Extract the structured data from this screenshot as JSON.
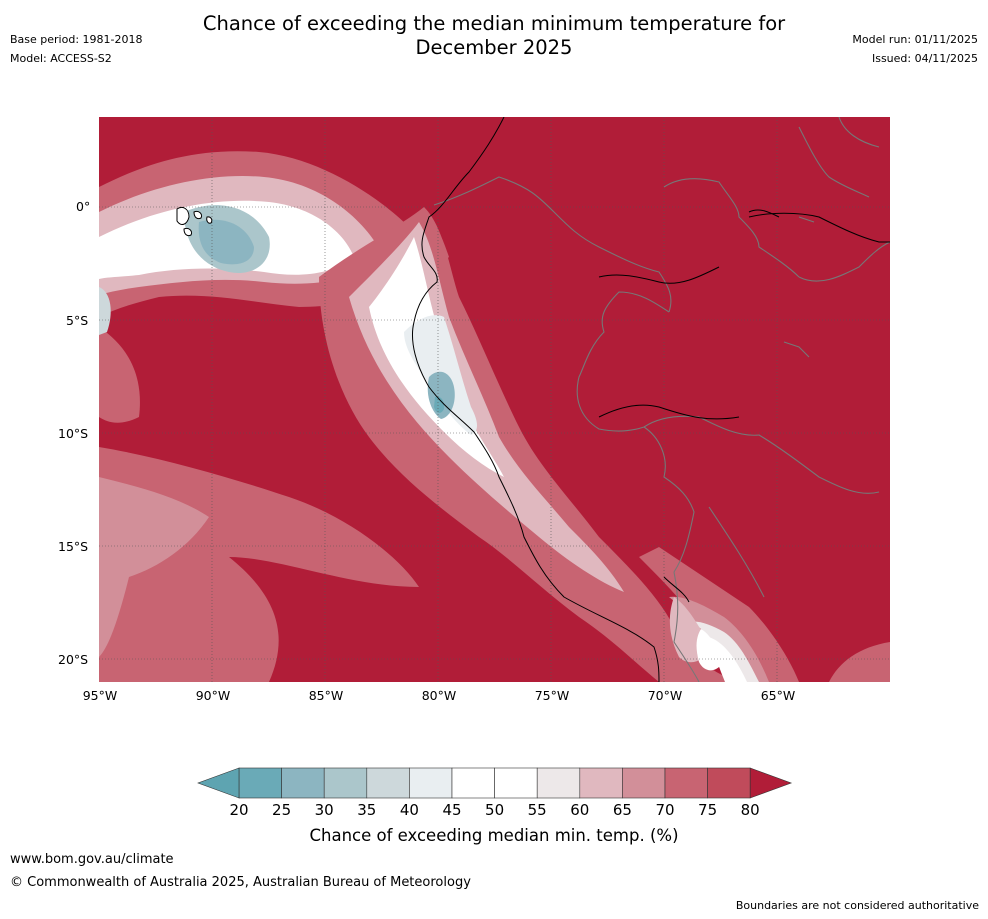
{
  "title": {
    "line1": "Chance of exceeding the median minimum temperature for",
    "line2": "December 2025"
  },
  "meta_left": {
    "base_period": "Base period: 1981-2018",
    "model": "Model: ACCESS-S2"
  },
  "meta_right": {
    "model_run": "Model run: 01/11/2025",
    "issued": "Issued: 04/11/2025"
  },
  "map": {
    "lat_labels": [
      "0°",
      "5°S",
      "10°S",
      "15°S",
      "20°S"
    ],
    "lon_labels": [
      "95°W",
      "90°W",
      "85°W",
      "80°W",
      "75°W",
      "70°W",
      "65°W"
    ],
    "lat_values": [
      0,
      -5,
      -10,
      -15,
      -20
    ],
    "lon_values": [
      -95,
      -90,
      -85,
      -80,
      -75,
      -70,
      -65
    ],
    "extent": {
      "lon_min": -95,
      "lon_max": -60,
      "lat_min": -21,
      "lat_max": 4
    }
  },
  "colorbar": {
    "ticks": [
      "20",
      "25",
      "30",
      "35",
      "40",
      "45",
      "50",
      "55",
      "60",
      "65",
      "70",
      "75",
      "80"
    ],
    "colors": [
      "#6aaab7",
      "#8cb5c1",
      "#abc6cb",
      "#cdd8db",
      "#e9eef1",
      "#ffffff",
      "#ffffff",
      "#ede8e9",
      "#e0b8bf",
      "#d28f99",
      "#c86472",
      "#c04b5b"
    ],
    "under_color": "#5ea4b1",
    "over_color": "#b11d38",
    "label": "Chance of exceeding median min. temp. (%)"
  },
  "footer": {
    "url": "www.bom.gov.au/climate",
    "copyright": "© Commonwealth of Australia 2025, Australian Bureau of Meteorology",
    "disclaimer": "Boundaries are not considered authoritative"
  },
  "colors": {
    "dominant": "#b11d38",
    "low": "#6aaab7"
  }
}
